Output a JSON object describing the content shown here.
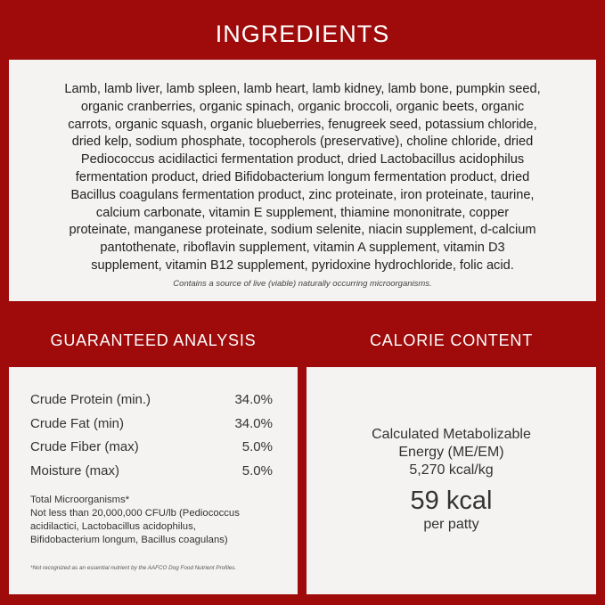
{
  "ingredients": {
    "title": "INGREDIENTS",
    "lines": [
      "Lamb, lamb liver, lamb spleen, lamb heart, lamb kidney, lamb bone, pumpkin seed,",
      "organic cranberries, organic spinach, organic broccoli, organic beets, organic",
      "carrots, organic squash, organic blueberries, fenugreek seed, potassium chloride,",
      "dried kelp, sodium phosphate, tocopherols (preservative), choline chloride, dried",
      "Pediococcus acidilactici fermentation product, dried Lactobacillus acidophilus",
      "fermentation product, dried Bifidobacterium longum fermentation product, dried",
      "Bacillus coagulans fermentation product, zinc proteinate, iron proteinate, taurine,",
      "calcium carbonate, vitamin E supplement, thiamine mononitrate, copper",
      "proteinate, manganese proteinate, sodium selenite, niacin supplement, d-calcium",
      "pantothenate, riboflavin supplement, vitamin A supplement, vitamin D3",
      "supplement, vitamin B12 supplement, pyridoxine hydrochloride, folic acid."
    ],
    "note": "Contains a source of live (viable) naturally occurring microorganisms."
  },
  "analysis": {
    "title": "GUARANTEED ANALYSIS",
    "rows": [
      {
        "label": "Crude Protein (min.)",
        "value": "34.0%"
      },
      {
        "label": "Crude Fat (min)",
        "value": "34.0%"
      },
      {
        "label": "Crude Fiber (max)",
        "value": "5.0%"
      },
      {
        "label": "Moisture (max)",
        "value": "5.0%"
      }
    ],
    "micro_lines": [
      "Total Microorganisms*",
      "Not less than 20,000,000 CFU/lb (Pediococcus",
      "acidilactici, Lactobacillus acidophilus,",
      "Bifidobacterium longum, Bacillus coagulans)"
    ],
    "footnote": "*Not recognized as an essential nutrient by the AAFCO Dog Food Nutrient Profiles."
  },
  "calorie": {
    "title": "CALORIE CONTENT",
    "lines": [
      "Calculated Metabolizable",
      "Energy (ME/EM)",
      "5,270 kcal/kg"
    ],
    "big": "59 kcal",
    "per": "per patty"
  },
  "colors": {
    "background": "#9f0b0b",
    "panel": "#f4f3f2"
  }
}
